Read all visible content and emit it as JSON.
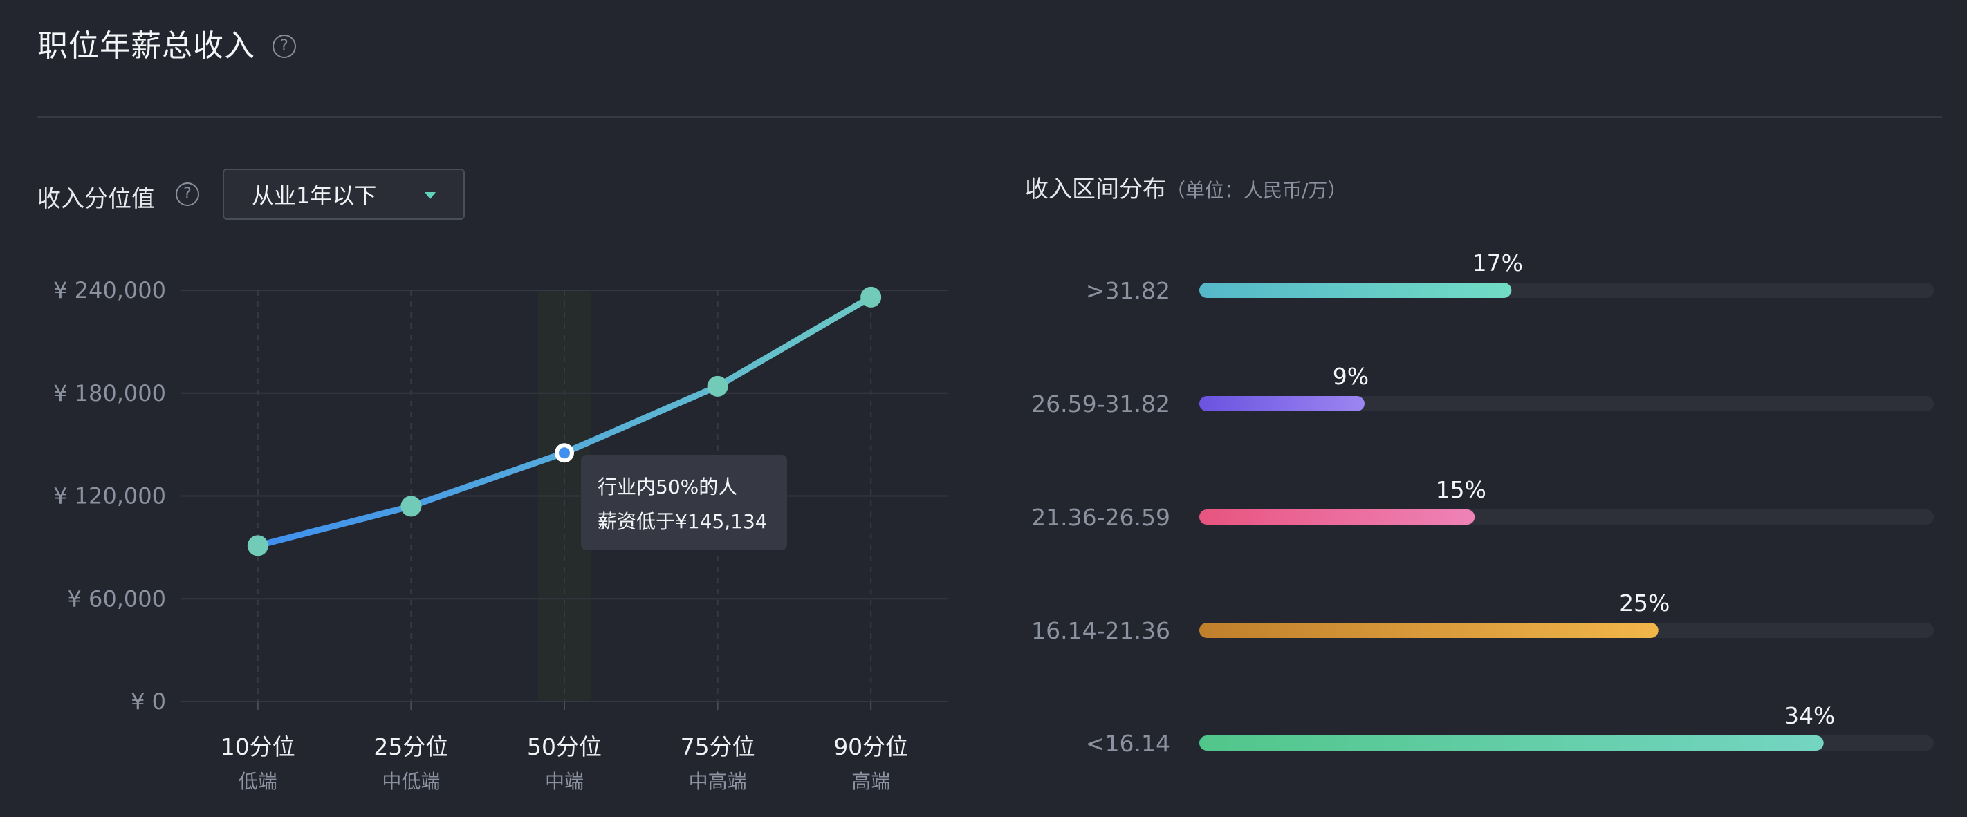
{
  "page": {
    "title": "职位年薪总收入",
    "help_icon_glyph": "?"
  },
  "left": {
    "label": "收入分位值",
    "dropdown_value": "从业1年以下",
    "tooltip_line1": "行业内50%的人",
    "tooltip_line2": "薪资低于¥145,134"
  },
  "right": {
    "label": "收入区间分布",
    "unit": "（单位：人民币/万）"
  },
  "chart_data": [
    {
      "type": "line",
      "x": [
        "10分位",
        "25分位",
        "50分位",
        "75分位",
        "90分位"
      ],
      "x_sublabels": [
        "低端",
        "中低端",
        "中端",
        "中高端",
        "高端"
      ],
      "values": [
        91000,
        114000,
        145134,
        184000,
        236000
      ],
      "ylim": [
        0,
        240000
      ],
      "y_ticks": [
        0,
        60000,
        120000,
        180000,
        240000
      ],
      "y_tick_labels": [
        "¥ 0",
        "¥ 60,000",
        "¥ 120,000",
        "¥ 180,000",
        "¥ 240,000"
      ],
      "highlight_index": 2,
      "line_colors": [
        "#3f8ff0",
        "#6cc9c4"
      ],
      "point_color": "#72cbb8",
      "grid": true
    },
    {
      "type": "bar",
      "orientation": "horizontal",
      "categories": [
        ">31.82",
        "26.59-31.82",
        "21.36-26.59",
        "16.14-21.36",
        "<16.14"
      ],
      "values": [
        17,
        9,
        15,
        25,
        34
      ],
      "labels": [
        "17%",
        "9%",
        "15%",
        "25%",
        "34%"
      ],
      "xlim": [
        0,
        40
      ],
      "colors": [
        [
          "#55b8c9",
          "#72dcc5"
        ],
        [
          "#6b53e0",
          "#9c86f0"
        ],
        [
          "#e85480",
          "#ee83b7"
        ],
        [
          "#c07f2b",
          "#f1b64a"
        ],
        [
          "#51c68a",
          "#74d5c2"
        ]
      ],
      "track_color": "#2d3039"
    }
  ]
}
